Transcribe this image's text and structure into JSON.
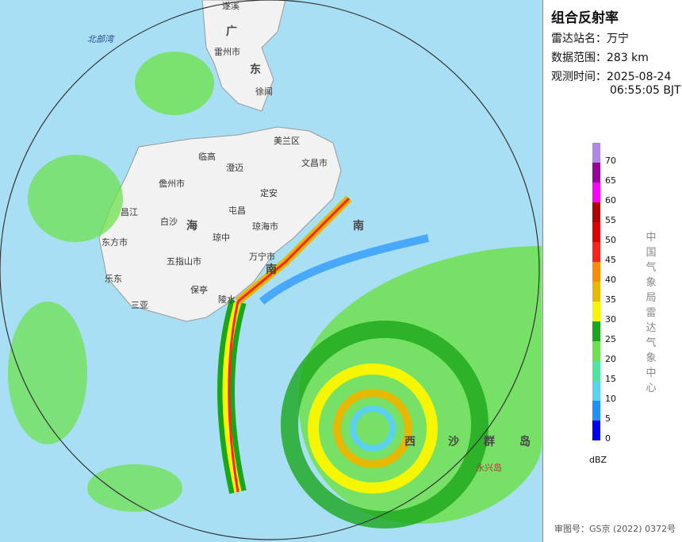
{
  "title": "组合反射率",
  "info": {
    "station_label": "雷达站名：",
    "station": "万宁",
    "range_label": "数据范围：",
    "range": "283 km",
    "time_label": "观测时间：",
    "date": "2025-08-24",
    "time": "06:55:05 BJT"
  },
  "legend": {
    "unit": "dBZ",
    "ticks": [
      0,
      5,
      10,
      15,
      20,
      25,
      30,
      35,
      40,
      45,
      50,
      55,
      60,
      65,
      70
    ],
    "colors": [
      "#0000f6",
      "#1e90ff",
      "#5ad2ee",
      "#4fe3a0",
      "#6ee24e",
      "#1aa61a",
      "#f6f600",
      "#e6b800",
      "#ff8c00",
      "#ff2020",
      "#e00000",
      "#b00000",
      "#ff00ff",
      "#9a009a",
      "#b088e8"
    ]
  },
  "credit": "中国气象局雷达气象中心",
  "review": "审图号：GS京 (2022) 0372号",
  "map": {
    "labels": [
      "北部湾",
      "广",
      "东",
      "雷州市",
      "徐闻",
      "海",
      "南",
      "临高",
      "澄迈",
      "儋州市",
      "昌江",
      "白沙",
      "东方市",
      "五指山市",
      "乐东",
      "保亭",
      "琼中",
      "屯昌",
      "定安",
      "文昌市",
      "琼海市",
      "万宁市",
      "陵水",
      "三亚",
      "南",
      "西",
      "沙",
      "群",
      "岛",
      "永兴岛",
      "美兰区",
      "遂溪"
    ]
  }
}
